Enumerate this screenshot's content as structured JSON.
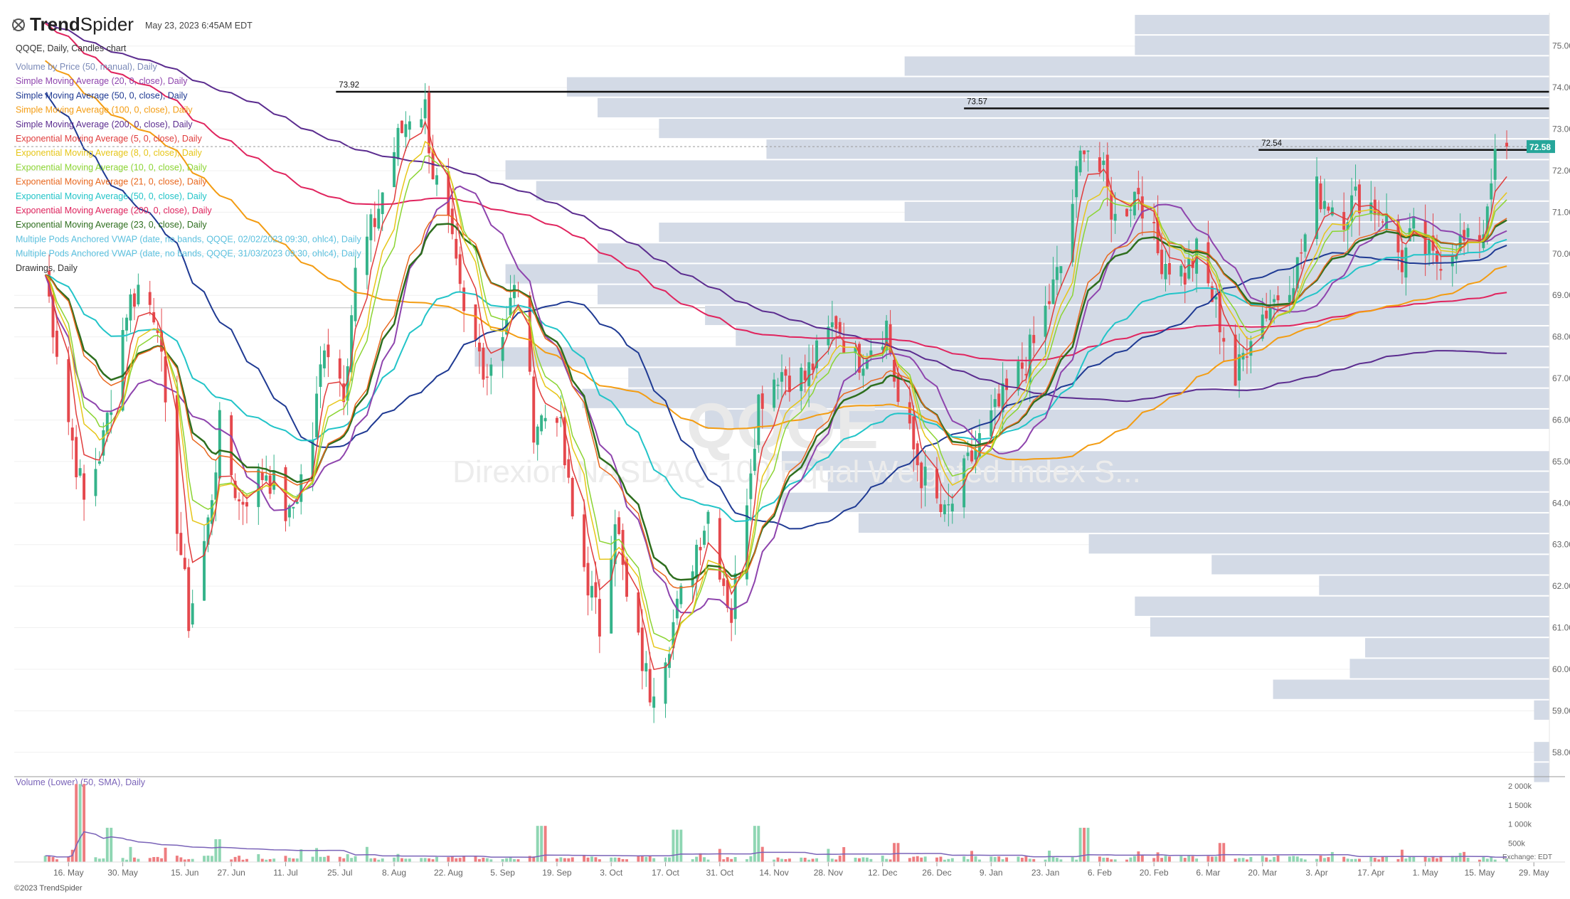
{
  "header": {
    "brand_prefix": "Trend",
    "brand_suffix": "Spider",
    "timestamp": "May 23, 2023 6:45AM EDT",
    "symbol_line": "QQQE, Daily, Candles chart"
  },
  "watermark": {
    "ticker": "QQQE",
    "name": "Direxion NASDAQ-100 Equal Weighted Index S..."
  },
  "legend": [
    {
      "label": "Volume by Price (50, manual), Daily",
      "color": "#7b8ab8"
    },
    {
      "label": "Simple Moving Average (20, 0, close), Daily",
      "color": "#8e44ad"
    },
    {
      "label": "Simple Moving Average (50, 0, close), Daily",
      "color": "#1f3a93"
    },
    {
      "label": "Simple Moving Average (100, 0, close), Daily",
      "color": "#f39c12"
    },
    {
      "label": "Simple Moving Average (200, 0, close), Daily",
      "color": "#5b2c8f"
    },
    {
      "label": "Exponential Moving Average (5, 0, close), Daily",
      "color": "#e03c3c"
    },
    {
      "label": "Exponential Moving Average (8, 0, close), Daily",
      "color": "#e6c619"
    },
    {
      "label": "Exponential Moving Average (10, 0, close), Daily",
      "color": "#8bd432"
    },
    {
      "label": "Exponential Moving Average (21, 0, close), Daily",
      "color": "#e8671e"
    },
    {
      "label": "Exponential Moving Average (50, 0, close), Daily",
      "color": "#22c4c8"
    },
    {
      "label": "Exponential Moving Average (200, 0, close), Daily",
      "color": "#e0245e"
    },
    {
      "label": "Exponential Moving Average (23, 0, close), Daily",
      "color": "#2e6e1e"
    },
    {
      "label": "Multiple Pods Anchored VWAP (date, no bands, QQQE, 02/02/2023 09:30, ohlc4), Daily",
      "color": "#5bc0de"
    },
    {
      "label": "Multiple Pods Anchored VWAP (date, no bands, QQQE, 31/03/2023 09:30, ohlc4), Daily",
      "color": "#5bc0de"
    },
    {
      "label": "Drawings, Daily",
      "color": "#333333"
    }
  ],
  "volume_panel": {
    "title": "Volume (Lower) (50, SMA), Daily",
    "ticks": [
      "2 000k",
      "1 500k",
      "1 000k",
      "500k"
    ],
    "exchange_note": "Exchange: EDT"
  },
  "footer": {
    "copyright": "©2023 TrendSpider"
  },
  "colors": {
    "up": "#34b38a",
    "down": "#e5484d",
    "profile": "#d3dae6",
    "price_tag": "#26a69a"
  },
  "chart_data": {
    "type": "candlestick",
    "symbol": "QQQE",
    "x_labels": [
      "16. May",
      "30. May",
      "15. Jun",
      "27. Jun",
      "11. Jul",
      "25. Jul",
      "8. Aug",
      "22. Aug",
      "5. Sep",
      "19. Sep",
      "3. Oct",
      "17. Oct",
      "31. Oct",
      "14. Nov",
      "28. Nov",
      "12. Dec",
      "26. Dec",
      "9. Jan",
      "23. Jan",
      "6. Feb",
      "20. Feb",
      "6. Mar",
      "20. Mar",
      "3. Apr",
      "17. Apr",
      "1. May",
      "15. May",
      "29. May"
    ],
    "y_ticks": [
      "75.00",
      "74.00",
      "73.00",
      "72.00",
      "71.00",
      "70.00",
      "69.00",
      "68.00",
      "67.00",
      "66.00",
      "65.00",
      "64.00",
      "63.00",
      "62.00",
      "61.00",
      "60.00",
      "59.00",
      "58.00"
    ],
    "ylim": [
      57.5,
      75.8
    ],
    "last_price": "72.58",
    "last_price_value": 72.58,
    "horizontal_levels": [
      {
        "label": "73.92",
        "value": 73.9
      },
      {
        "label": "73.57",
        "value": 73.5
      },
      {
        "label": "72.54",
        "value": 72.5
      }
    ],
    "close_path": [
      [
        "2022-05-10",
        69.5
      ],
      [
        "2022-05-16",
        66.0
      ],
      [
        "2022-05-20",
        64.0
      ],
      [
        "2022-05-25",
        65.5
      ],
      [
        "2022-05-31",
        68.7
      ],
      [
        "2022-06-03",
        69.2
      ],
      [
        "2022-06-08",
        68.5
      ],
      [
        "2022-06-10",
        66.0
      ],
      [
        "2022-06-16",
        61.2
      ],
      [
        "2022-06-21",
        63.5
      ],
      [
        "2022-06-24",
        65.8
      ],
      [
        "2022-06-29",
        64.0
      ],
      [
        "2022-07-06",
        64.8
      ],
      [
        "2022-07-12",
        63.6
      ],
      [
        "2022-07-18",
        65.6
      ],
      [
        "2022-07-21",
        68.0
      ],
      [
        "2022-07-26",
        66.8
      ],
      [
        "2022-07-29",
        69.5
      ],
      [
        "2022-08-03",
        70.8
      ],
      [
        "2022-08-08",
        72.5
      ],
      [
        "2022-08-12",
        73.4
      ],
      [
        "2022-08-16",
        73.5
      ],
      [
        "2022-08-18",
        72.0
      ],
      [
        "2022-08-22",
        70.6
      ],
      [
        "2022-08-26",
        68.4
      ],
      [
        "2022-09-01",
        67.2
      ],
      [
        "2022-09-09",
        69.3
      ],
      [
        "2022-09-13",
        65.9
      ],
      [
        "2022-09-19",
        66.3
      ],
      [
        "2022-09-23",
        63.6
      ],
      [
        "2022-09-30",
        61.0
      ],
      [
        "2022-10-04",
        63.8
      ],
      [
        "2022-10-07",
        61.6
      ],
      [
        "2022-10-13",
        59.5
      ],
      [
        "2022-10-18",
        60.8
      ],
      [
        "2022-10-21",
        61.7
      ],
      [
        "2022-10-25",
        63.0
      ],
      [
        "2022-10-28",
        63.8
      ],
      [
        "2022-11-03",
        61.3
      ],
      [
        "2022-11-10",
        66.5
      ],
      [
        "2022-11-15",
        67.2
      ],
      [
        "2022-11-22",
        67.0
      ],
      [
        "2022-11-30",
        68.4
      ],
      [
        "2022-12-05",
        67.4
      ],
      [
        "2022-12-13",
        68.3
      ],
      [
        "2022-12-16",
        66.4
      ],
      [
        "2022-12-22",
        64.7
      ],
      [
        "2022-12-28",
        63.6
      ],
      [
        "2023-01-06",
        65.5
      ],
      [
        "2023-01-13",
        66.6
      ],
      [
        "2023-01-20",
        67.8
      ],
      [
        "2023-01-27",
        69.7
      ],
      [
        "2023-02-02",
        72.8
      ],
      [
        "2023-02-07",
        71.8
      ],
      [
        "2023-02-10",
        70.8
      ],
      [
        "2023-02-16",
        71.6
      ],
      [
        "2023-02-21",
        70.0
      ],
      [
        "2023-02-28",
        69.5
      ],
      [
        "2023-03-03",
        70.0
      ],
      [
        "2023-03-09",
        68.4
      ],
      [
        "2023-03-13",
        66.9
      ],
      [
        "2023-03-17",
        68.2
      ],
      [
        "2023-03-23",
        68.9
      ],
      [
        "2023-03-29",
        69.7
      ],
      [
        "2023-04-03",
        71.5
      ],
      [
        "2023-04-10",
        71.0
      ],
      [
        "2023-04-14",
        71.4
      ],
      [
        "2023-04-20",
        71.0
      ],
      [
        "2023-04-25",
        69.8
      ],
      [
        "2023-04-28",
        70.5
      ],
      [
        "2023-05-03",
        69.8
      ],
      [
        "2023-05-09",
        70.3
      ],
      [
        "2023-05-12",
        70.2
      ],
      [
        "2023-05-16",
        70.6
      ],
      [
        "2023-05-18",
        72.0
      ],
      [
        "2023-05-22",
        72.58
      ]
    ],
    "volume_profile": [
      {
        "price": 75.5,
        "size": 0.27
      },
      {
        "price": 75.0,
        "size": 0.27
      },
      {
        "price": 74.5,
        "size": 0.42
      },
      {
        "price": 74.0,
        "size": 0.64
      },
      {
        "price": 73.5,
        "size": 0.62
      },
      {
        "price": 73.0,
        "size": 0.58
      },
      {
        "price": 72.5,
        "size": 0.51
      },
      {
        "price": 72.0,
        "size": 0.68
      },
      {
        "price": 71.5,
        "size": 0.66
      },
      {
        "price": 71.0,
        "size": 0.42
      },
      {
        "price": 70.5,
        "size": 0.58
      },
      {
        "price": 70.0,
        "size": 0.62
      },
      {
        "price": 69.5,
        "size": 0.68
      },
      {
        "price": 69.0,
        "size": 0.62
      },
      {
        "price": 68.5,
        "size": 0.55
      },
      {
        "price": 68.0,
        "size": 0.53
      },
      {
        "price": 67.5,
        "size": 0.7
      },
      {
        "price": 67.0,
        "size": 0.6
      },
      {
        "price": 66.5,
        "size": 0.63
      },
      {
        "price": 66.0,
        "size": 0.55
      },
      {
        "price": 65.0,
        "size": 0.5
      },
      {
        "price": 64.5,
        "size": 0.47
      },
      {
        "price": 64.0,
        "size": 0.5
      },
      {
        "price": 63.5,
        "size": 0.45
      },
      {
        "price": 63.0,
        "size": 0.3
      },
      {
        "price": 62.5,
        "size": 0.22
      },
      {
        "price": 62.0,
        "size": 0.15
      },
      {
        "price": 61.5,
        "size": 0.27
      },
      {
        "price": 61.0,
        "size": 0.26
      },
      {
        "price": 60.5,
        "size": 0.12
      },
      {
        "price": 60.0,
        "size": 0.13
      },
      {
        "price": 59.5,
        "size": 0.18
      },
      {
        "price": 59.0,
        "size": 0.01
      },
      {
        "price": 58.0,
        "size": 0.01
      },
      {
        "price": 57.5,
        "size": 0.01
      }
    ],
    "volume_series": {
      "ylim": [
        0,
        2000000
      ],
      "spikes": [
        {
          "date": "2022-05-19",
          "value": 2050000
        },
        {
          "date": "2022-05-27",
          "value": 900000
        },
        {
          "date": "2022-09-15",
          "value": 950000
        },
        {
          "date": "2022-10-20",
          "value": 850000
        },
        {
          "date": "2022-11-10",
          "value": 950000
        },
        {
          "date": "2023-02-02",
          "value": 900000
        },
        {
          "date": "2022-06-24",
          "value": 600000
        },
        {
          "date": "2022-12-16",
          "value": 500000
        },
        {
          "date": "2023-03-10",
          "value": 500000
        }
      ]
    }
  }
}
